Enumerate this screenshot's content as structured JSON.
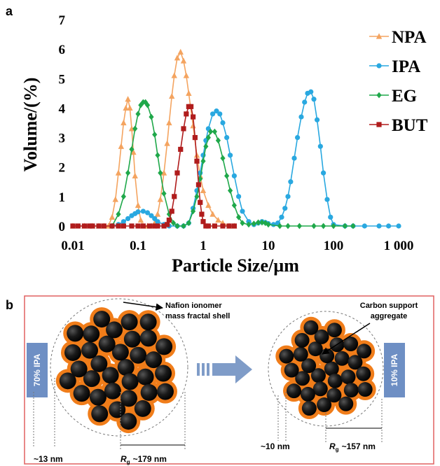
{
  "chart_data": {
    "type": "line",
    "panel_label": "a",
    "x_label": "Particle Size/µm",
    "y_label": "Volume/(%)",
    "x_scale": "log",
    "xlim": [
      0.01,
      1000
    ],
    "ylim": [
      0,
      7
    ],
    "xticks": [
      0.01,
      0.1,
      1,
      10,
      100,
      {
        "value": 1000,
        "label": "1 000"
      }
    ],
    "yticks": [
      0,
      1,
      2,
      3,
      4,
      5,
      6,
      7
    ],
    "grid": false,
    "legend": "upper right",
    "series": [
      {
        "name": "NPA",
        "color": "#f4a460",
        "marker": "triangle",
        "x": [
          0.01,
          0.015,
          0.02,
          0.025,
          0.03,
          0.035,
          0.04,
          0.045,
          0.05,
          0.055,
          0.06,
          0.065,
          0.07,
          0.075,
          0.08,
          0.085,
          0.09,
          0.1,
          0.11,
          0.12,
          0.14,
          0.16,
          0.18,
          0.2,
          0.22,
          0.25,
          0.28,
          0.3,
          0.33,
          0.36,
          0.4,
          0.45,
          0.5,
          0.55,
          0.6,
          0.7,
          0.8,
          0.9,
          1,
          1.2,
          1.4,
          1.7,
          2,
          2.5,
          3
        ],
        "values": [
          0,
          0,
          0,
          0,
          0,
          0,
          0.3,
          0.9,
          1.8,
          2.7,
          3.5,
          4.0,
          4.3,
          4.0,
          3.3,
          2.5,
          1.7,
          0.7,
          0.2,
          0,
          0,
          0,
          0.1,
          0.4,
          0.9,
          1.8,
          2.8,
          3.5,
          4.4,
          5.1,
          5.7,
          5.9,
          5.6,
          5.1,
          4.5,
          3.4,
          2.4,
          1.7,
          1.2,
          0.7,
          0.4,
          0.2,
          0.1,
          0,
          0
        ]
      },
      {
        "name": "IPA",
        "color": "#29a8e0",
        "marker": "circle",
        "x": [
          0.04,
          0.05,
          0.06,
          0.07,
          0.08,
          0.09,
          0.1,
          0.12,
          0.14,
          0.16,
          0.18,
          0.2,
          0.25,
          0.3,
          0.4,
          0.5,
          0.6,
          0.7,
          0.8,
          0.9,
          1,
          1.1,
          1.2,
          1.4,
          1.6,
          1.8,
          2,
          2.3,
          2.6,
          3,
          3.5,
          4,
          5,
          6,
          7,
          8,
          9,
          10,
          12,
          14,
          16,
          18,
          20,
          22,
          25,
          28,
          32,
          36,
          40,
          45,
          50,
          56,
          63,
          70,
          80,
          90,
          100,
          150,
          200,
          300,
          500,
          700,
          1000
        ],
        "values": [
          0,
          0.05,
          0.15,
          0.25,
          0.35,
          0.42,
          0.48,
          0.5,
          0.45,
          0.35,
          0.25,
          0.15,
          0.05,
          0,
          0,
          0,
          0.1,
          0.6,
          1.2,
          1.8,
          2.4,
          2.9,
          3.3,
          3.8,
          3.9,
          3.8,
          3.5,
          3.0,
          2.4,
          1.7,
          1.0,
          0.5,
          0.15,
          0.05,
          0.1,
          0.15,
          0.12,
          0.08,
          0.05,
          0.1,
          0.3,
          0.6,
          1.0,
          1.5,
          2.3,
          3.0,
          3.7,
          4.2,
          4.5,
          4.55,
          4.3,
          3.6,
          2.7,
          1.8,
          0.9,
          0.3,
          0.05,
          0,
          0,
          0,
          0,
          0,
          0
        ]
      },
      {
        "name": "EG",
        "color": "#1fa84a",
        "marker": "diamond",
        "x": [
          0.04,
          0.05,
          0.06,
          0.07,
          0.08,
          0.09,
          0.1,
          0.11,
          0.12,
          0.13,
          0.14,
          0.16,
          0.18,
          0.2,
          0.22,
          0.25,
          0.3,
          0.35,
          0.4,
          0.5,
          0.6,
          0.7,
          0.8,
          0.9,
          1,
          1.1,
          1.2,
          1.3,
          1.5,
          1.7,
          2,
          2.3,
          2.6,
          3,
          3.5,
          4,
          5,
          6,
          7,
          8,
          9,
          10,
          15,
          20,
          30,
          50,
          70,
          100,
          150,
          200
        ],
        "values": [
          0,
          0.4,
          1.0,
          1.8,
          2.6,
          3.3,
          3.8,
          4.1,
          4.2,
          4.2,
          4.1,
          3.7,
          3.1,
          2.4,
          1.8,
          1.1,
          0.4,
          0.1,
          0,
          0,
          0.1,
          0.5,
          1.0,
          1.6,
          2.2,
          2.7,
          3.0,
          3.2,
          3.2,
          2.9,
          2.3,
          1.7,
          1.2,
          0.7,
          0.3,
          0.1,
          0.05,
          0.08,
          0.12,
          0.12,
          0.1,
          0.05,
          0,
          0,
          0,
          0,
          0,
          0,
          0,
          0
        ]
      },
      {
        "name": "BUT",
        "color": "#b01c1c",
        "marker": "square",
        "x": [
          0.01,
          0.012,
          0.015,
          0.018,
          0.02,
          0.025,
          0.03,
          0.04,
          0.05,
          0.06,
          0.08,
          0.1,
          0.12,
          0.15,
          0.18,
          0.2,
          0.25,
          0.28,
          0.3,
          0.33,
          0.36,
          0.4,
          0.45,
          0.5,
          0.55,
          0.6,
          0.65,
          0.7,
          0.75,
          0.8,
          0.85,
          0.9,
          0.95,
          1,
          1.1,
          1.2,
          1.5,
          2,
          2.5,
          3
        ],
        "values": [
          0,
          0,
          0,
          0,
          0,
          0,
          0,
          0,
          0,
          0,
          0,
          0,
          0,
          0,
          0,
          0,
          0,
          0.05,
          0.2,
          0.5,
          1.0,
          1.8,
          2.6,
          3.3,
          3.8,
          4.05,
          4.05,
          3.7,
          3.0,
          2.2,
          1.4,
          0.8,
          0.4,
          0.15,
          0,
          0,
          0,
          0,
          0,
          0
        ]
      }
    ]
  },
  "diagram": {
    "panel_label": "b",
    "shell_label": [
      "Nafion ionomer",
      "mass fractal shell"
    ],
    "aggregate_label": [
      "Carbon support",
      "aggregate"
    ],
    "left": {
      "solvent": "70% IPA",
      "gap": "~13 nm",
      "rg_symbol": "R",
      "rg_sub": "g",
      "rg_value": "~179 nm"
    },
    "right": {
      "solvent": "10% IPA",
      "gap": "~10 nm",
      "rg_symbol": "R",
      "rg_sub": "g",
      "rg_value": "~157 nm"
    }
  }
}
